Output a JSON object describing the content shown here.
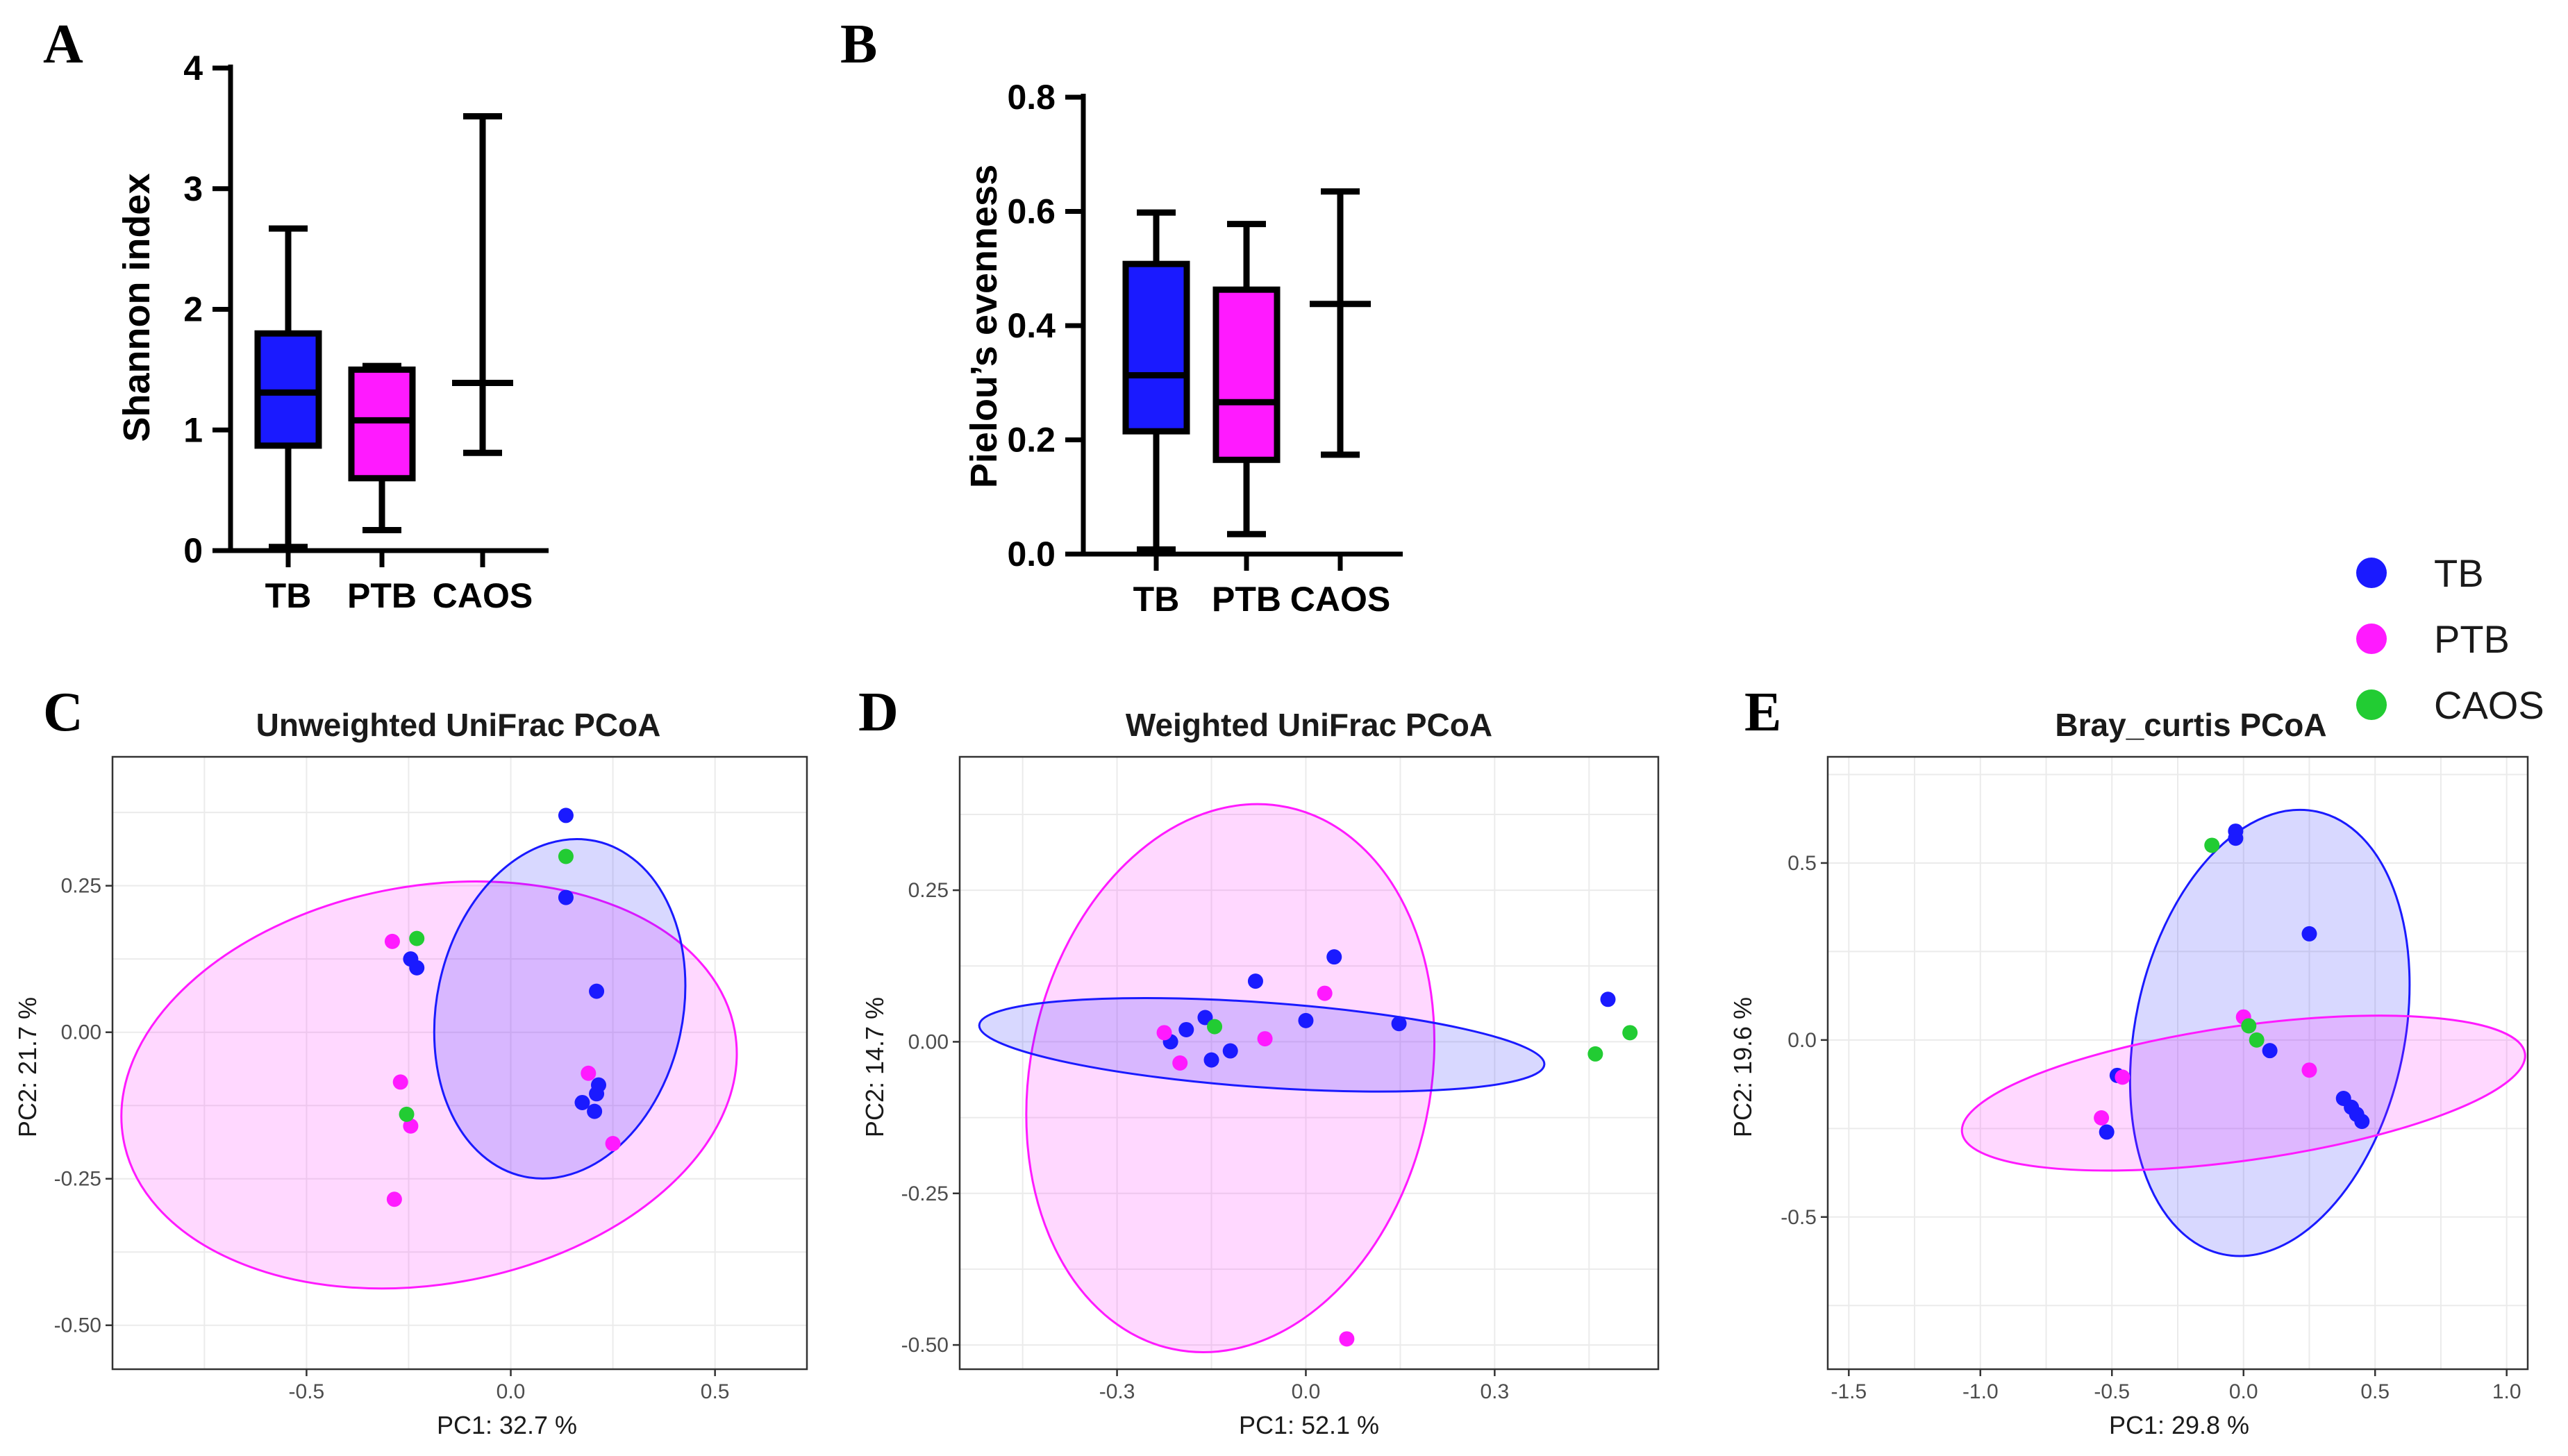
{
  "colors": {
    "TB": "#1a1aff",
    "PTB": "#ff1aff",
    "CAOS": "#22cc33"
  },
  "legend": [
    {
      "label": "TB",
      "color": "#1a1aff"
    },
    {
      "label": "PTB",
      "color": "#ff1aff"
    },
    {
      "label": "CAOS",
      "color": "#22cc33"
    }
  ],
  "chart_data": [
    {
      "panel": "A",
      "type": "box",
      "ylabel": "Shannon index",
      "ylim": [
        0,
        4
      ],
      "yticks": [
        0,
        1,
        2,
        3,
        4
      ],
      "categories": [
        "TB",
        "PTB",
        "CAOS"
      ],
      "boxes": [
        {
          "name": "TB",
          "min": 0.03,
          "q1": 0.87,
          "median": 1.31,
          "q3": 1.8,
          "max": 2.67,
          "fill": "#1a1aff"
        },
        {
          "name": "PTB",
          "min": 0.17,
          "q1": 0.6,
          "median": 1.08,
          "q3": 1.5,
          "max": 1.53,
          "fill": "#ff1aff"
        },
        {
          "name": "CAOS",
          "min": 0.81,
          "median": 1.39,
          "max": 3.6,
          "fill": "none"
        }
      ]
    },
    {
      "panel": "B",
      "type": "box",
      "ylabel": "Pielou’s evenness",
      "ylim": [
        0,
        0.8
      ],
      "yticks": [
        "0.0",
        "0.2",
        "0.4",
        "0.6",
        "0.8"
      ],
      "categories": [
        "TB",
        "PTB",
        "CAOS"
      ],
      "boxes": [
        {
          "name": "TB",
          "min": 0.008,
          "q1": 0.215,
          "median": 0.313,
          "q3": 0.508,
          "max": 0.598,
          "fill": "#1a1aff"
        },
        {
          "name": "PTB",
          "min": 0.035,
          "q1": 0.165,
          "median": 0.266,
          "q3": 0.463,
          "max": 0.578,
          "fill": "#ff1aff"
        },
        {
          "name": "CAOS",
          "min": 0.174,
          "median": 0.438,
          "max": 0.635,
          "fill": "none"
        }
      ]
    },
    {
      "panel": "C",
      "type": "scatter",
      "title": "Unweighted UniFrac PCoA",
      "xlabel": "PC1: 32.7 %",
      "ylabel": "PC2: 21.7 %",
      "xlim": [
        -0.975,
        0.725
      ],
      "ylim": [
        -0.575,
        0.47
      ],
      "xticks": [
        "-0.5",
        "0.0",
        "0.5"
      ],
      "yticks": [
        "-0.50",
        "-0.25",
        "0.00",
        "0.25"
      ],
      "ellipses": [
        {
          "group": "PTB",
          "cx": -0.2,
          "cy": -0.09,
          "rx": 0.76,
          "ry": 0.34,
          "angle": 10
        },
        {
          "group": "TB",
          "cx": 0.12,
          "cy": 0.04,
          "rx": 0.42,
          "ry": 0.21,
          "angle": 78
        }
      ],
      "points": [
        {
          "group": "TB",
          "x": 0.135,
          "y": 0.37
        },
        {
          "group": "TB",
          "x": 0.135,
          "y": 0.23
        },
        {
          "group": "TB",
          "x": -0.245,
          "y": 0.125
        },
        {
          "group": "TB",
          "x": -0.23,
          "y": 0.11
        },
        {
          "group": "TB",
          "x": 0.21,
          "y": 0.07
        },
        {
          "group": "TB",
          "x": 0.215,
          "y": -0.09
        },
        {
          "group": "TB",
          "x": 0.21,
          "y": -0.105
        },
        {
          "group": "TB",
          "x": 0.175,
          "y": -0.12
        },
        {
          "group": "TB",
          "x": 0.205,
          "y": -0.135
        },
        {
          "group": "PTB",
          "x": -0.29,
          "y": 0.155
        },
        {
          "group": "PTB",
          "x": -0.27,
          "y": -0.085
        },
        {
          "group": "PTB",
          "x": -0.245,
          "y": -0.16
        },
        {
          "group": "PTB",
          "x": -0.285,
          "y": -0.285
        },
        {
          "group": "PTB",
          "x": 0.19,
          "y": -0.07
        },
        {
          "group": "PTB",
          "x": 0.25,
          "y": -0.19
        },
        {
          "group": "CAOS",
          "x": 0.135,
          "y": 0.3
        },
        {
          "group": "CAOS",
          "x": -0.23,
          "y": 0.16
        },
        {
          "group": "CAOS",
          "x": -0.255,
          "y": -0.14
        }
      ]
    },
    {
      "panel": "D",
      "type": "scatter",
      "title": "Weighted UniFrac PCoA",
      "xlabel": "PC1: 52.1 %",
      "ylabel": "PC2: 14.7 %",
      "xlim": [
        -0.55,
        0.56
      ],
      "ylim": [
        -0.54,
        0.47
      ],
      "xticks": [
        "-0.3",
        "0.0",
        "0.3"
      ],
      "yticks": [
        "-0.50",
        "-0.25",
        "0.00",
        "0.25"
      ],
      "ellipses": [
        {
          "group": "PTB",
          "cx": -0.12,
          "cy": -0.06,
          "rx": 0.44,
          "ry": 0.33,
          "angle": 78
        },
        {
          "group": "TB",
          "cx": -0.07,
          "cy": -0.005,
          "rx": 0.45,
          "ry": 0.07,
          "angle": -4
        }
      ],
      "points": [
        {
          "group": "TB",
          "x": 0.045,
          "y": 0.14
        },
        {
          "group": "TB",
          "x": -0.08,
          "y": 0.1
        },
        {
          "group": "TB",
          "x": -0.16,
          "y": 0.04
        },
        {
          "group": "TB",
          "x": -0.19,
          "y": 0.02
        },
        {
          "group": "TB",
          "x": -0.215,
          "y": 0.0
        },
        {
          "group": "TB",
          "x": -0.15,
          "y": -0.03
        },
        {
          "group": "TB",
          "x": -0.12,
          "y": -0.015
        },
        {
          "group": "TB",
          "x": 0.0,
          "y": 0.035
        },
        {
          "group": "TB",
          "x": 0.148,
          "y": 0.03
        },
        {
          "group": "TB",
          "x": 0.48,
          "y": 0.07
        },
        {
          "group": "PTB",
          "x": -0.225,
          "y": 0.015
        },
        {
          "group": "PTB",
          "x": -0.2,
          "y": -0.035
        },
        {
          "group": "PTB",
          "x": -0.065,
          "y": 0.005
        },
        {
          "group": "PTB",
          "x": 0.03,
          "y": 0.08
        },
        {
          "group": "PTB",
          "x": 0.065,
          "y": -0.49
        },
        {
          "group": "CAOS",
          "x": -0.145,
          "y": 0.025
        },
        {
          "group": "CAOS",
          "x": 0.46,
          "y": -0.02
        },
        {
          "group": "CAOS",
          "x": 0.515,
          "y": 0.015
        }
      ]
    },
    {
      "panel": "E",
      "type": "scatter",
      "title": "Bray_curtis PCoA",
      "xlabel": "PC1: 29.8 %",
      "ylabel": "PC2: 19.6 %",
      "xlim": [
        -1.58,
        1.08
      ],
      "ylim": [
        -0.93,
        0.8
      ],
      "xticks": [
        "-1.5",
        "-1.0",
        "-0.5",
        "0.0",
        "0.5",
        "1.0"
      ],
      "yticks": [
        "-0.5",
        "0.0",
        "0.5"
      ],
      "ellipses": [
        {
          "group": "TB",
          "cx": 0.1,
          "cy": 0.02,
          "rx": 0.86,
          "ry": 0.38,
          "angle": 78
        },
        {
          "group": "PTB",
          "cx": 0.0,
          "cy": -0.15,
          "rx": 1.08,
          "ry": 0.19,
          "angle": 8
        }
      ],
      "points": [
        {
          "group": "TB",
          "x": -0.03,
          "y": 0.59
        },
        {
          "group": "TB",
          "x": -0.03,
          "y": 0.57
        },
        {
          "group": "TB",
          "x": 0.25,
          "y": 0.3
        },
        {
          "group": "TB",
          "x": 0.1,
          "y": -0.03
        },
        {
          "group": "TB",
          "x": -0.48,
          "y": -0.1
        },
        {
          "group": "TB",
          "x": -0.52,
          "y": -0.26
        },
        {
          "group": "TB",
          "x": 0.38,
          "y": -0.165
        },
        {
          "group": "TB",
          "x": 0.41,
          "y": -0.19
        },
        {
          "group": "TB",
          "x": 0.43,
          "y": -0.21
        },
        {
          "group": "TB",
          "x": 0.45,
          "y": -0.23
        },
        {
          "group": "PTB",
          "x": 0.0,
          "y": 0.065
        },
        {
          "group": "PTB",
          "x": 0.25,
          "y": -0.085
        },
        {
          "group": "PTB",
          "x": -0.46,
          "y": -0.105
        },
        {
          "group": "PTB",
          "x": -0.54,
          "y": -0.22
        },
        {
          "group": "CAOS",
          "x": -0.12,
          "y": 0.55
        },
        {
          "group": "CAOS",
          "x": 0.02,
          "y": 0.04
        },
        {
          "group": "CAOS",
          "x": 0.05,
          "y": 0.0
        }
      ]
    }
  ]
}
